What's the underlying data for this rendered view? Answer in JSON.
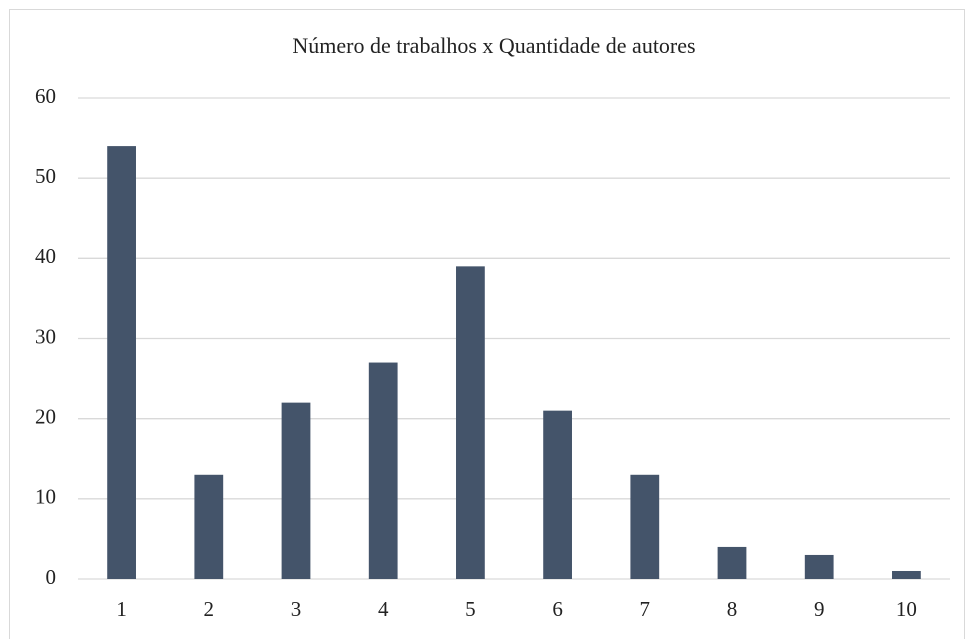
{
  "chart_data": {
    "type": "bar",
    "title": "Número de trabalhos x Quantidade de autores",
    "categories": [
      "1",
      "2",
      "3",
      "4",
      "5",
      "6",
      "7",
      "8",
      "9",
      "10"
    ],
    "values": [
      54,
      13,
      22,
      27,
      39,
      21,
      13,
      4,
      3,
      1
    ],
    "color": "#44546a",
    "ylim": [
      0,
      60
    ],
    "yticks": [
      0,
      10,
      20,
      30,
      40,
      50,
      60
    ],
    "grid": true
  }
}
